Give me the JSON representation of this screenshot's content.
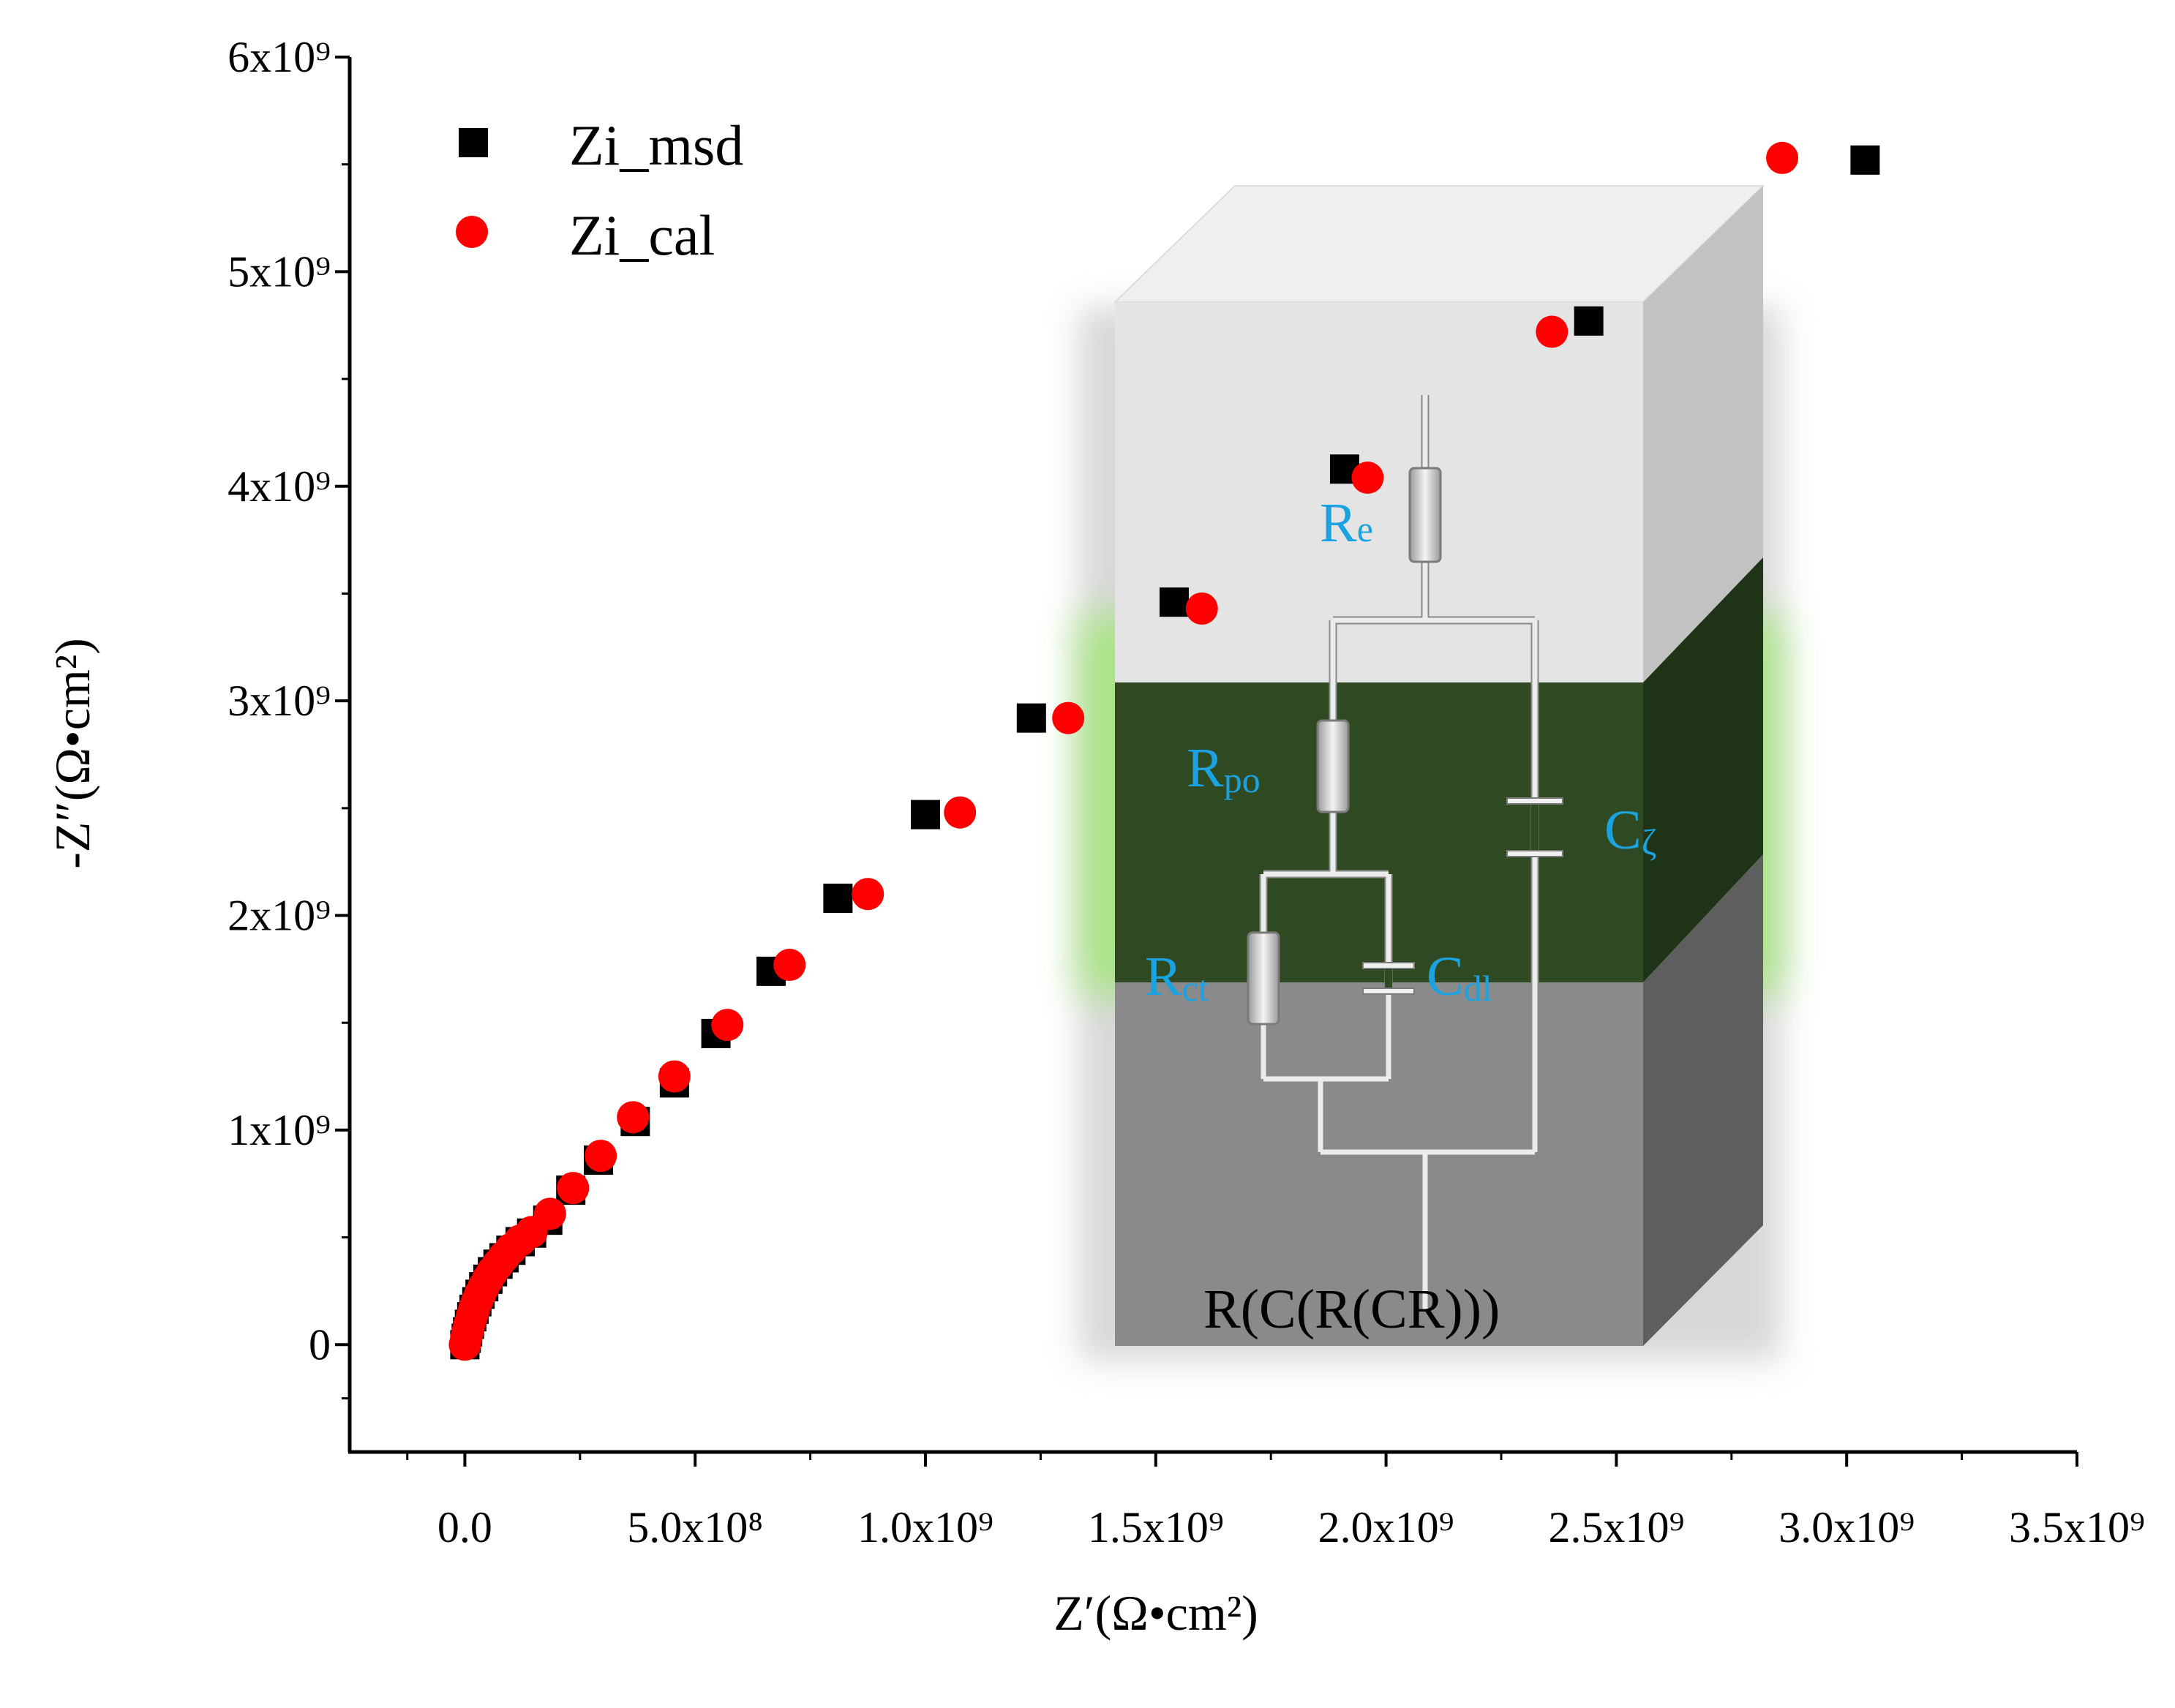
{
  "chart_data": {
    "type": "scatter",
    "title": "",
    "xlabel": "Z′(Ω•cm²)",
    "ylabel": "-Z″(Ω•cm²)",
    "xlim": [
      -250000000,
      3500000000
    ],
    "ylim": [
      -500000000,
      6000000000
    ],
    "xticks": [
      {
        "value": 0,
        "label": "0.0"
      },
      {
        "value": 500000000,
        "label": "5.0x10⁸"
      },
      {
        "value": 1000000000,
        "label": "1.0x10⁹"
      },
      {
        "value": 1500000000,
        "label": "1.5x10⁹"
      },
      {
        "value": 2000000000,
        "label": "2.0x10⁹"
      },
      {
        "value": 2500000000,
        "label": "2.5x10⁹"
      },
      {
        "value": 3000000000,
        "label": "3.0x10⁹"
      },
      {
        "value": 3500000000,
        "label": "3.5x10⁹"
      }
    ],
    "yticks": [
      {
        "value": 0,
        "label": "0"
      },
      {
        "value": 1000000000,
        "label": "1x10⁹"
      },
      {
        "value": 2000000000,
        "label": "2x10⁹"
      },
      {
        "value": 3000000000,
        "label": "3x10⁹"
      },
      {
        "value": 4000000000,
        "label": "4x10⁹"
      },
      {
        "value": 5000000000,
        "label": "5x10⁹"
      },
      {
        "value": 6000000000,
        "label": "6x10⁹"
      }
    ],
    "legend_position": "top-left",
    "series": [
      {
        "name": "Zi_msd",
        "marker": "square",
        "color": "#000000",
        "x": [
          0,
          3000000,
          6000000,
          10000000,
          15000000,
          20000000,
          26000000,
          33000000,
          41000000,
          50000000,
          60000000,
          72000000,
          85000000,
          100000000,
          120000000,
          145000000,
          180000000,
          230000000,
          290000000,
          370000000,
          455000000,
          545000000,
          665000000,
          810000000,
          1000000000,
          1230000000,
          1540000000,
          1910000000,
          2440000000,
          3040000000
        ],
        "y": [
          0,
          30000000,
          60000000,
          95000000,
          130000000,
          165000000,
          200000000,
          235000000,
          270000000,
          305000000,
          340000000,
          375000000,
          405000000,
          440000000,
          480000000,
          520000000,
          580000000,
          720000000,
          860000000,
          1040000000,
          1220000000,
          1450000000,
          1740000000,
          2080000000,
          2470000000,
          2920000000,
          3460000000,
          4080000000,
          4770000000,
          5520000000
        ]
      },
      {
        "name": "Zi_cal",
        "marker": "circle",
        "color": "#ff0000",
        "x": [
          0,
          3000000,
          6000000,
          10000000,
          15000000,
          20000000,
          26000000,
          33000000,
          41000000,
          50000000,
          60000000,
          72000000,
          85000000,
          100000000,
          120000000,
          145000000,
          185000000,
          235000000,
          295000000,
          365000000,
          455000000,
          570000000,
          705000000,
          875000000,
          1075000000,
          1310000000,
          1600000000,
          1960000000,
          2360000000,
          2860000000
        ],
        "y": [
          0,
          30000000,
          60000000,
          95000000,
          130000000,
          165000000,
          200000000,
          235000000,
          270000000,
          305000000,
          340000000,
          375000000,
          410000000,
          445000000,
          485000000,
          525000000,
          610000000,
          730000000,
          880000000,
          1060000000,
          1250000000,
          1490000000,
          1770000000,
          2100000000,
          2480000000,
          2920000000,
          3430000000,
          4040000000,
          4720000000,
          5530000000
        ]
      }
    ]
  },
  "inset": {
    "model_label": "R(C(R(CR)))",
    "labels": {
      "re": {
        "main": "R",
        "sub": "e"
      },
      "rpo": {
        "main": "R",
        "sub": "po"
      },
      "czeta": {
        "main": "C",
        "sub": "ζ"
      },
      "rct": {
        "main": "R",
        "sub": "ct"
      },
      "cdl": {
        "main": "C",
        "sub": "dl"
      }
    },
    "colors": {
      "top_layer": "#e4e4e4",
      "middle_layer": "#2f4a22",
      "bottom_layer": "#8a8a8a",
      "glow": "#9be86e",
      "label_color": "#1aa3e0"
    }
  }
}
